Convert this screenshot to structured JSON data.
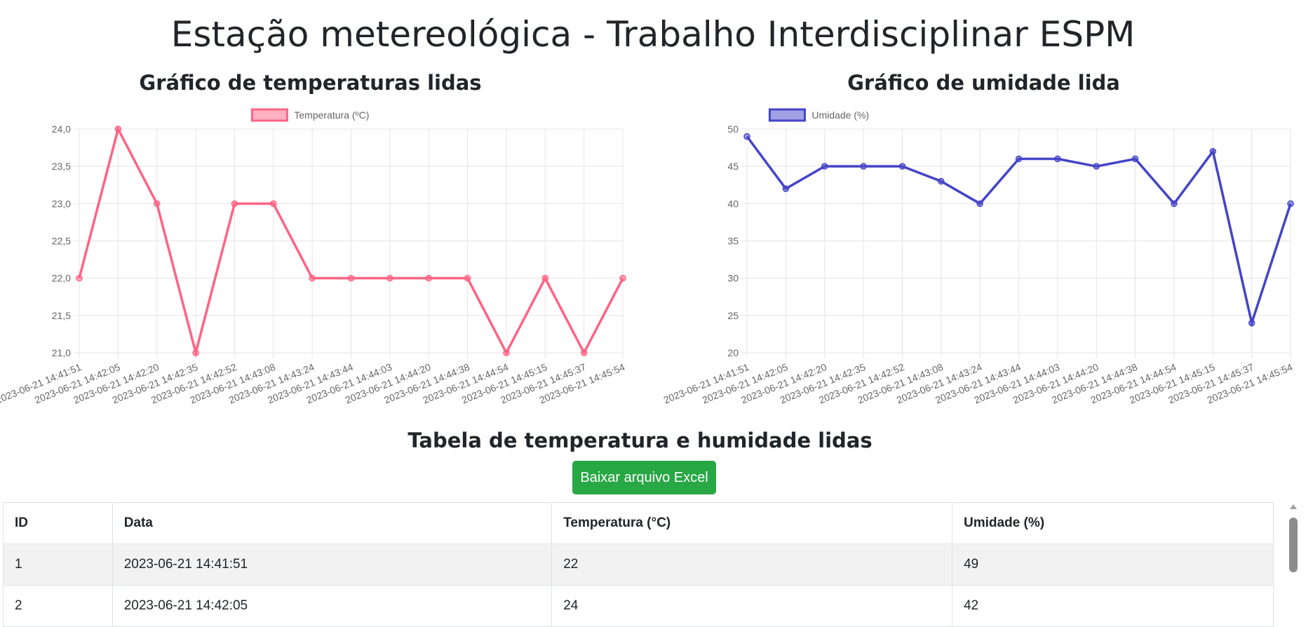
{
  "page": {
    "title": "Estação metereológica - Trabalho Interdisciplinar ESPM"
  },
  "chart_data": [
    {
      "type": "line",
      "title": "Gráfico de temperaturas lidas",
      "categories": [
        "2023-06-21 14:41:51",
        "2023-06-21 14:42:05",
        "2023-06-21 14:42:20",
        "2023-06-21 14:42:35",
        "2023-06-21 14:42:52",
        "2023-06-21 14:43:08",
        "2023-06-21 14:43:24",
        "2023-06-21 14:43:44",
        "2023-06-21 14:44:03",
        "2023-06-21 14:44:20",
        "2023-06-21 14:44:38",
        "2023-06-21 14:44:54",
        "2023-06-21 14:45:15",
        "2023-06-21 14:45:37",
        "2023-06-21 14:45:54"
      ],
      "series": [
        {
          "name": "Temperatura (ºC)",
          "color": "#ff6384",
          "values": [
            22,
            24,
            23,
            21,
            23,
            23,
            22,
            22,
            22,
            22,
            22,
            21,
            22,
            21,
            22
          ]
        }
      ],
      "ylim": [
        21,
        24
      ],
      "yticks": [
        "21,0",
        "21,5",
        "22,0",
        "22,5",
        "23,0",
        "23,5",
        "24,0"
      ],
      "grid": true,
      "legend": "top-center"
    },
    {
      "type": "line",
      "title": "Gráfico de umidade lida",
      "categories": [
        "2023-06-21 14:41:51",
        "2023-06-21 14:42:05",
        "2023-06-21 14:42:20",
        "2023-06-21 14:42:35",
        "2023-06-21 14:42:52",
        "2023-06-21 14:43:08",
        "2023-06-21 14:43:24",
        "2023-06-21 14:43:44",
        "2023-06-21 14:44:03",
        "2023-06-21 14:44:20",
        "2023-06-21 14:44:38",
        "2023-06-21 14:44:54",
        "2023-06-21 14:45:15",
        "2023-06-21 14:45:37",
        "2023-06-21 14:45:54"
      ],
      "series": [
        {
          "name": "Umidade (%)",
          "color": "#4444c8",
          "values": [
            49,
            42,
            45,
            45,
            45,
            43,
            40,
            46,
            46,
            45,
            46,
            40,
            47,
            24,
            40
          ]
        }
      ],
      "ylim": [
        20,
        50
      ],
      "yticks": [
        "20",
        "25",
        "30",
        "35",
        "40",
        "45",
        "50"
      ],
      "grid": true,
      "legend": "top-center"
    }
  ],
  "table": {
    "title": "Tabela de temperatura e humidade lidas",
    "download_label": "Baixar arquivo Excel",
    "headers": [
      "ID",
      "Data",
      "Temperatura (°C)",
      "Umidade (%)"
    ],
    "rows": [
      [
        "1",
        "2023-06-21 14:41:51",
        "22",
        "49"
      ],
      [
        "2",
        "2023-06-21 14:42:05",
        "24",
        "42"
      ]
    ]
  }
}
